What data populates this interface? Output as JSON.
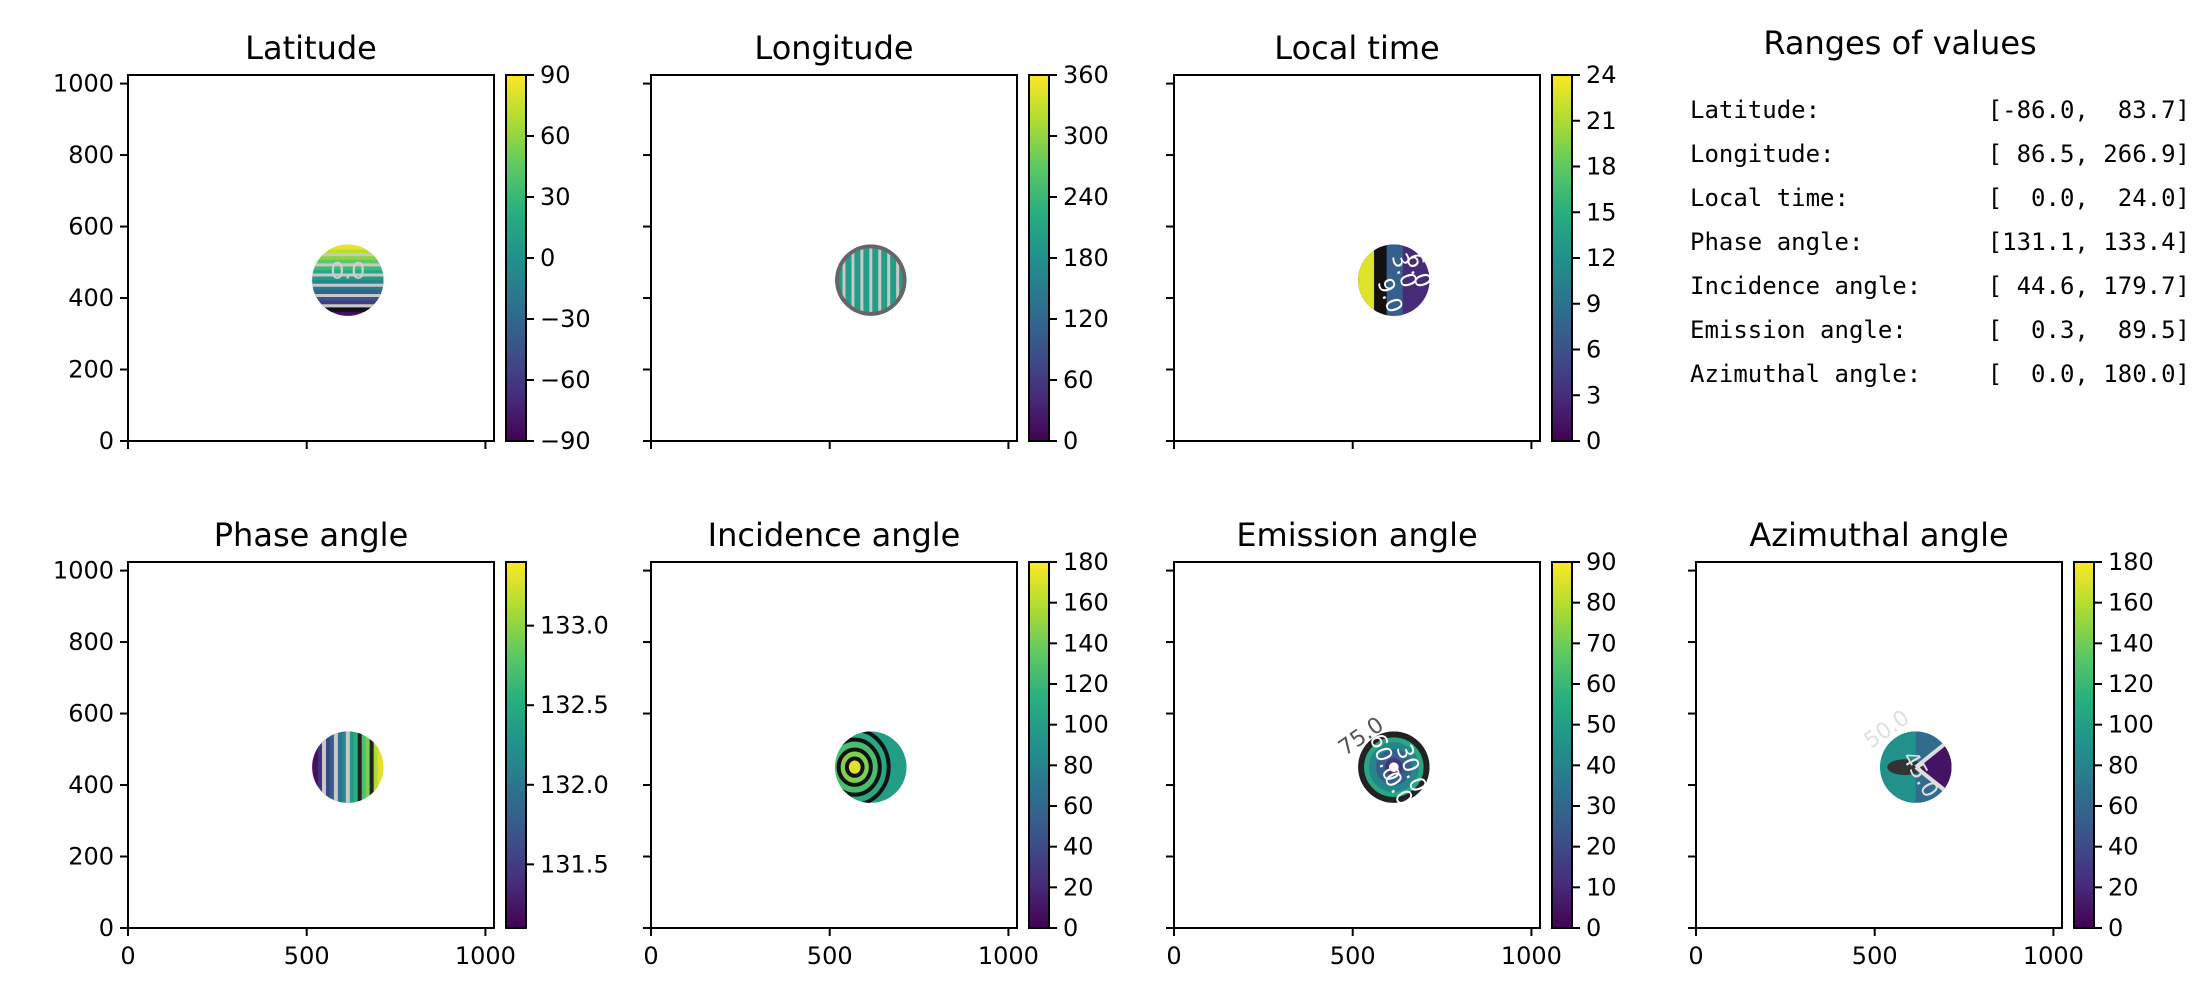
{
  "chart_data": [
    {
      "id": "lat",
      "type": "heatmap",
      "title": "Latitude",
      "xlim": [
        0,
        1024
      ],
      "ylim": [
        0,
        1024
      ],
      "xticks": [
        0,
        500,
        1000
      ],
      "yticks": [
        0,
        200,
        400,
        600,
        800,
        1000
      ],
      "show_xticklabels": false,
      "show_yticklabels": true,
      "colorbar": {
        "min": -90,
        "max": 90,
        "ticks": [
          -90,
          -60,
          -30,
          0,
          30,
          60,
          90
        ],
        "ticklabels": [
          "−90",
          "−60",
          "−30",
          "0",
          "30",
          "60",
          "90"
        ]
      },
      "disk": {
        "center": [
          615,
          450
        ],
        "radius": 100,
        "fill": "latitude"
      },
      "contour_labels": [
        {
          "text": "0.0",
          "x": 615,
          "y": 455,
          "color": "#d0d0d0"
        }
      ]
    },
    {
      "id": "lon",
      "type": "heatmap",
      "title": "Longitude",
      "xlim": [
        0,
        1024
      ],
      "ylim": [
        0,
        1024
      ],
      "xticks": [
        0,
        500,
        1000
      ],
      "yticks": [
        0,
        200,
        400,
        600,
        800,
        1000
      ],
      "show_xticklabels": false,
      "show_yticklabels": false,
      "colorbar": {
        "min": 0,
        "max": 360,
        "ticks": [
          0,
          60,
          120,
          180,
          240,
          300,
          360
        ],
        "ticklabels": [
          "0",
          "60",
          "120",
          "180",
          "240",
          "300",
          "360"
        ]
      },
      "disk": {
        "center": [
          615,
          450
        ],
        "radius": 100,
        "fill": "longitude"
      },
      "contour_labels": []
    },
    {
      "id": "lt",
      "type": "heatmap",
      "title": "Local time",
      "xlim": [
        0,
        1024
      ],
      "ylim": [
        0,
        1024
      ],
      "xticks": [
        0,
        500,
        1000
      ],
      "yticks": [
        0,
        200,
        400,
        600,
        800,
        1000
      ],
      "show_xticklabels": false,
      "show_yticklabels": false,
      "colorbar": {
        "min": 0,
        "max": 24,
        "ticks": [
          0,
          3,
          6,
          9,
          12,
          15,
          18,
          21,
          24
        ],
        "ticklabels": [
          "0",
          "3",
          "6",
          "9",
          "12",
          "15",
          "18",
          "21",
          "24"
        ]
      },
      "disk": {
        "center": [
          615,
          450
        ],
        "radius": 100,
        "fill": "localtime"
      },
      "contour_labels": [
        {
          "text": "3.0",
          "x": 625,
          "y": 470,
          "color": "#ffffff",
          "rotate": 70
        },
        {
          "text": "6.0",
          "x": 665,
          "y": 470,
          "color": "#ffffff",
          "rotate": 70
        },
        {
          "text": "9.0",
          "x": 585,
          "y": 400,
          "color": "#ffffff",
          "rotate": 70
        }
      ]
    },
    {
      "id": "phase",
      "type": "heatmap",
      "title": "Phase angle",
      "xlim": [
        0,
        1024
      ],
      "ylim": [
        0,
        1024
      ],
      "xticks": [
        0,
        500,
        1000
      ],
      "yticks": [
        0,
        200,
        400,
        600,
        800,
        1000
      ],
      "show_xticklabels": true,
      "show_yticklabels": true,
      "colorbar": {
        "min": 131.1,
        "max": 133.4,
        "ticks": [
          131.5,
          132.0,
          132.5,
          133.0
        ],
        "ticklabels": [
          "131.5",
          "132.0",
          "132.5",
          "133.0"
        ]
      },
      "disk": {
        "center": [
          615,
          450
        ],
        "radius": 100,
        "fill": "phase"
      },
      "contour_labels": []
    },
    {
      "id": "inc",
      "type": "heatmap",
      "title": "Incidence angle",
      "xlim": [
        0,
        1024
      ],
      "ylim": [
        0,
        1024
      ],
      "xticks": [
        0,
        500,
        1000
      ],
      "yticks": [
        0,
        200,
        400,
        600,
        800,
        1000
      ],
      "show_xticklabels": true,
      "show_yticklabels": false,
      "colorbar": {
        "min": 0,
        "max": 180,
        "ticks": [
          0,
          20,
          40,
          60,
          80,
          100,
          120,
          140,
          160,
          180
        ],
        "ticklabels": [
          "0",
          "20",
          "40",
          "60",
          "80",
          "100",
          "120",
          "140",
          "160",
          "180"
        ]
      },
      "disk": {
        "center": [
          615,
          450
        ],
        "radius": 100,
        "fill": "incidence"
      },
      "contour_labels": []
    },
    {
      "id": "emi",
      "type": "heatmap",
      "title": "Emission angle",
      "xlim": [
        0,
        1024
      ],
      "ylim": [
        0,
        1024
      ],
      "xticks": [
        0,
        500,
        1000
      ],
      "yticks": [
        0,
        200,
        400,
        600,
        800,
        1000
      ],
      "show_xticklabels": true,
      "show_yticklabels": false,
      "colorbar": {
        "min": 0,
        "max": 90,
        "ticks": [
          0,
          10,
          20,
          30,
          40,
          50,
          60,
          70,
          80,
          90
        ],
        "ticklabels": [
          "0",
          "10",
          "20",
          "30",
          "40",
          "50",
          "60",
          "70",
          "80",
          "90"
        ]
      },
      "disk": {
        "center": [
          615,
          450
        ],
        "radius": 100,
        "fill": "emission"
      },
      "contour_labels": [
        {
          "text": "75.0",
          "x": 535,
          "y": 520,
          "color": "#555555",
          "rotate": -35
        },
        {
          "text": "60.0",
          "x": 570,
          "y": 470,
          "color": "#ffffff",
          "rotate": 70
        },
        {
          "text": "30.0",
          "x": 645,
          "y": 440,
          "color": "#ffffff",
          "rotate": 70
        },
        {
          "text": "0.0",
          "x": 610,
          "y": 380,
          "color": "#ffffff",
          "rotate": 60
        }
      ]
    },
    {
      "id": "azi",
      "type": "heatmap",
      "title": "Azimuthal angle",
      "xlim": [
        0,
        1024
      ],
      "ylim": [
        0,
        1024
      ],
      "xticks": [
        0,
        500,
        1000
      ],
      "yticks": [
        0,
        200,
        400,
        600,
        800,
        1000
      ],
      "show_xticklabels": true,
      "show_yticklabels": false,
      "colorbar": {
        "min": 0,
        "max": 180,
        "ticks": [
          0,
          20,
          40,
          60,
          80,
          100,
          120,
          140,
          160,
          180
        ],
        "ticklabels": [
          "0",
          "20",
          "40",
          "60",
          "80",
          "100",
          "120",
          "140",
          "160",
          "180"
        ]
      },
      "disk": {
        "center": [
          615,
          450
        ],
        "radius": 100,
        "fill": "azimuth"
      },
      "contour_labels": [
        {
          "text": "50.0",
          "x": 545,
          "y": 540,
          "color": "#e0e0e0",
          "rotate": -35
        },
        {
          "text": "45.0",
          "x": 610,
          "y": 420,
          "color": "#e0e0e0",
          "rotate": 60
        }
      ]
    }
  ],
  "ranges": {
    "title": "Ranges of values",
    "rows": [
      {
        "label": "Latitude:",
        "value": "[-86.0,  83.7]"
      },
      {
        "label": "Longitude:",
        "value": "[ 86.5, 266.9]"
      },
      {
        "label": "Local time:",
        "value": "[  0.0,  24.0]"
      },
      {
        "label": "Phase angle:",
        "value": "[131.1, 133.4]"
      },
      {
        "label": "Incidence angle:",
        "value": "[ 44.6, 179.7]"
      },
      {
        "label": "Emission angle:",
        "value": "[  0.3,  89.5]"
      },
      {
        "label": "Azimuthal angle:",
        "value": "[  0.0, 180.0]"
      }
    ]
  },
  "colors": {
    "viridis": [
      "#440154",
      "#472d7b",
      "#3b528b",
      "#2c728e",
      "#21918c",
      "#28ae80",
      "#5ec962",
      "#addc30",
      "#fde725"
    ]
  }
}
